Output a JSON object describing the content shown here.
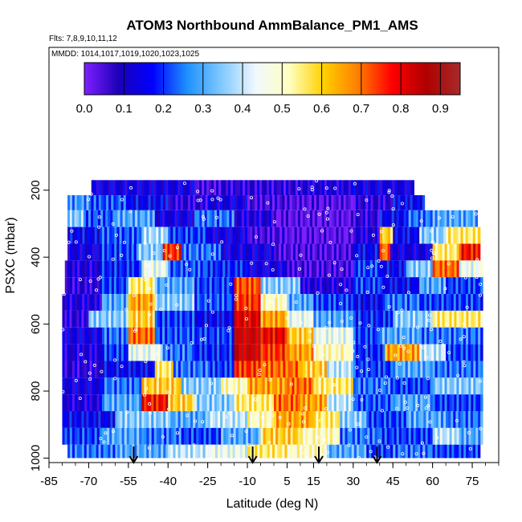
{
  "chart_data": {
    "type": "heatmap",
    "title": "ATOM3 Northbound AmmBalance_PM1_AMS",
    "subtitle": "Flts: 7,8,9,10,11,12",
    "annotation": "MMDD: 1014,1017,1019,1020,1023,1025",
    "xlabel": "Latitude (deg N)",
    "ylabel": "PSXC (mbar)",
    "xlim": [
      -85,
      85
    ],
    "ylim": [
      1000,
      100
    ],
    "y_reversed": true,
    "xticks": [
      "-85",
      "-70",
      "-55",
      "-40",
      "-25",
      "-10",
      "5",
      "15",
      "30",
      "45",
      "60",
      "75"
    ],
    "xtick_values": [
      -85,
      -70,
      -55,
      -40,
      -25,
      -10,
      5,
      15,
      30,
      45,
      60,
      75
    ],
    "yticks": [
      "200",
      "400",
      "600",
      "800",
      "1000"
    ],
    "ytick_values": [
      200,
      400,
      600,
      800,
      1000
    ],
    "colorbar": {
      "range": [
        0,
        0.95
      ],
      "ticks": [
        "0.0",
        "0.1",
        "0.2",
        "0.3",
        "0.4",
        "0.5",
        "0.6",
        "0.7",
        "0.8",
        "0.9"
      ],
      "tick_values": [
        0,
        0.1,
        0.2,
        0.3,
        0.4,
        0.5,
        0.6,
        0.7,
        0.8,
        0.9
      ],
      "colors": [
        "#7f1fff",
        "#1c00b8",
        "#0000ff",
        "#1e90ff",
        "#7fc8ff",
        "#f0f8ff",
        "#ffffc0",
        "#ffd000",
        "#ff7f00",
        "#ff0000",
        "#b00000",
        "#a52a2a"
      ]
    },
    "layers": [
      {
        "p_top": 170,
        "p_bot": 215,
        "segments": [
          [
            -69,
            -30,
            0.12
          ],
          [
            -30,
            -20,
            0.05
          ],
          [
            -20,
            10,
            0.08
          ],
          [
            10,
            30,
            0.1
          ],
          [
            30,
            53,
            0.12
          ]
        ]
      },
      {
        "p_top": 215,
        "p_bot": 260,
        "segments": [
          [
            -78,
            -70,
            0.28
          ],
          [
            -70,
            -55,
            0.22
          ],
          [
            -55,
            -40,
            0.15
          ],
          [
            -40,
            -25,
            0.08
          ],
          [
            -25,
            -10,
            0.12
          ],
          [
            -10,
            5,
            0.05
          ],
          [
            5,
            30,
            0.03
          ],
          [
            30,
            45,
            0.08
          ],
          [
            45,
            57,
            0.15
          ]
        ]
      },
      {
        "p_top": 260,
        "p_bot": 310,
        "segments": [
          [
            -78,
            -72,
            0.35
          ],
          [
            -72,
            -60,
            0.22
          ],
          [
            -60,
            -45,
            0.3
          ],
          [
            -45,
            -30,
            0.12
          ],
          [
            -30,
            -15,
            0.25
          ],
          [
            -15,
            0,
            0.1
          ],
          [
            0,
            30,
            0.02
          ],
          [
            30,
            40,
            0.08
          ],
          [
            40,
            50,
            0.15
          ],
          [
            50,
            60,
            0.25
          ],
          [
            60,
            77,
            0.3
          ]
        ]
      },
      {
        "p_top": 310,
        "p_bot": 360,
        "segments": [
          [
            -78,
            -65,
            0.15
          ],
          [
            -65,
            -50,
            0.22
          ],
          [
            -50,
            -40,
            0.38
          ],
          [
            -40,
            -25,
            0.2
          ],
          [
            -25,
            -10,
            0.12
          ],
          [
            -10,
            5,
            0.05
          ],
          [
            5,
            30,
            0.02
          ],
          [
            30,
            40,
            0.1
          ],
          [
            40,
            45,
            0.6
          ],
          [
            45,
            55,
            0.15
          ],
          [
            55,
            65,
            0.35
          ],
          [
            65,
            78,
            0.55
          ]
        ]
      },
      {
        "p_top": 360,
        "p_bot": 410,
        "segments": [
          [
            -78,
            -65,
            0.12
          ],
          [
            -65,
            -52,
            0.2
          ],
          [
            -52,
            -42,
            0.35
          ],
          [
            -42,
            -35,
            0.75
          ],
          [
            -35,
            -20,
            0.25
          ],
          [
            -20,
            0,
            0.12
          ],
          [
            0,
            30,
            0.04
          ],
          [
            30,
            40,
            0.15
          ],
          [
            40,
            44,
            0.7
          ],
          [
            44,
            60,
            0.12
          ],
          [
            60,
            70,
            0.55
          ],
          [
            70,
            78,
            0.78
          ]
        ]
      },
      {
        "p_top": 410,
        "p_bot": 460,
        "segments": [
          [
            -79,
            -65,
            0.1
          ],
          [
            -65,
            -50,
            0.18
          ],
          [
            -50,
            -40,
            0.45
          ],
          [
            -40,
            -25,
            0.22
          ],
          [
            -25,
            -10,
            0.18
          ],
          [
            -10,
            5,
            0.12
          ],
          [
            5,
            30,
            0.05
          ],
          [
            30,
            40,
            0.2
          ],
          [
            40,
            50,
            0.15
          ],
          [
            50,
            60,
            0.35
          ],
          [
            60,
            70,
            0.7
          ],
          [
            70,
            79,
            0.45
          ]
        ]
      },
      {
        "p_top": 460,
        "p_bot": 510,
        "segments": [
          [
            -79,
            -65,
            0.08
          ],
          [
            -65,
            -55,
            0.2
          ],
          [
            -55,
            -45,
            0.55
          ],
          [
            -45,
            -30,
            0.3
          ],
          [
            -30,
            -15,
            0.2
          ],
          [
            -15,
            -5,
            0.72
          ],
          [
            -5,
            10,
            0.35
          ],
          [
            10,
            30,
            0.1
          ],
          [
            30,
            42,
            0.2
          ],
          [
            42,
            55,
            0.15
          ],
          [
            55,
            65,
            0.3
          ],
          [
            65,
            79,
            0.2
          ]
        ]
      },
      {
        "p_top": 510,
        "p_bot": 560,
        "segments": [
          [
            -80,
            -65,
            0.1
          ],
          [
            -65,
            -55,
            0.3
          ],
          [
            -55,
            -45,
            0.65
          ],
          [
            -45,
            -30,
            0.35
          ],
          [
            -30,
            -15,
            0.22
          ],
          [
            -15,
            -5,
            0.75
          ],
          [
            -5,
            5,
            0.5
          ],
          [
            5,
            15,
            0.3
          ],
          [
            15,
            30,
            0.2
          ],
          [
            30,
            42,
            0.15
          ],
          [
            42,
            55,
            0.25
          ],
          [
            55,
            79,
            0.2
          ]
        ]
      },
      {
        "p_top": 560,
        "p_bot": 610,
        "segments": [
          [
            -80,
            -70,
            0.08
          ],
          [
            -70,
            -55,
            0.35
          ],
          [
            -55,
            -45,
            0.6
          ],
          [
            -45,
            -30,
            0.2
          ],
          [
            -30,
            -15,
            0.15
          ],
          [
            -15,
            -5,
            0.82
          ],
          [
            -5,
            5,
            0.65
          ],
          [
            5,
            15,
            0.45
          ],
          [
            15,
            30,
            0.3
          ],
          [
            30,
            45,
            0.18
          ],
          [
            45,
            60,
            0.35
          ],
          [
            60,
            79,
            0.55
          ]
        ]
      },
      {
        "p_top": 610,
        "p_bot": 660,
        "segments": [
          [
            -80,
            -65,
            0.12
          ],
          [
            -65,
            -55,
            0.25
          ],
          [
            -55,
            -45,
            0.7
          ],
          [
            -45,
            -30,
            0.22
          ],
          [
            -30,
            -15,
            0.2
          ],
          [
            -15,
            -5,
            0.85
          ],
          [
            -5,
            5,
            0.8
          ],
          [
            5,
            15,
            0.6
          ],
          [
            15,
            30,
            0.45
          ],
          [
            30,
            40,
            0.2
          ],
          [
            40,
            55,
            0.3
          ],
          [
            55,
            79,
            0.25
          ]
        ]
      },
      {
        "p_top": 660,
        "p_bot": 710,
        "segments": [
          [
            -80,
            -65,
            0.1
          ],
          [
            -65,
            -55,
            0.2
          ],
          [
            -55,
            -42,
            0.45
          ],
          [
            -42,
            -30,
            0.25
          ],
          [
            -30,
            -15,
            0.18
          ],
          [
            -15,
            -5,
            0.85
          ],
          [
            -5,
            5,
            0.75
          ],
          [
            5,
            15,
            0.65
          ],
          [
            15,
            30,
            0.5
          ],
          [
            30,
            42,
            0.18
          ],
          [
            42,
            55,
            0.65
          ],
          [
            55,
            65,
            0.4
          ],
          [
            65,
            79,
            0.2
          ]
        ]
      },
      {
        "p_top": 710,
        "p_bot": 760,
        "segments": [
          [
            -80,
            -65,
            0.08
          ],
          [
            -65,
            -45,
            0.15
          ],
          [
            -45,
            -38,
            0.55
          ],
          [
            -38,
            -25,
            0.25
          ],
          [
            -25,
            -15,
            0.2
          ],
          [
            -15,
            -5,
            0.75
          ],
          [
            -5,
            10,
            0.7
          ],
          [
            10,
            20,
            0.6
          ],
          [
            20,
            30,
            0.4
          ],
          [
            30,
            45,
            0.2
          ],
          [
            45,
            60,
            0.3
          ],
          [
            60,
            79,
            0.25
          ]
        ]
      },
      {
        "p_top": 760,
        "p_bot": 810,
        "segments": [
          [
            -80,
            -65,
            0.12
          ],
          [
            -65,
            -50,
            0.25
          ],
          [
            -50,
            -35,
            0.6
          ],
          [
            -35,
            -20,
            0.35
          ],
          [
            -20,
            -10,
            0.5
          ],
          [
            -10,
            5,
            0.65
          ],
          [
            5,
            15,
            0.7
          ],
          [
            15,
            30,
            0.55
          ],
          [
            30,
            45,
            0.25
          ],
          [
            45,
            60,
            0.2
          ],
          [
            60,
            79,
            0.35
          ]
        ]
      },
      {
        "p_top": 810,
        "p_bot": 860,
        "segments": [
          [
            -80,
            -65,
            0.1
          ],
          [
            -65,
            -50,
            0.3
          ],
          [
            -50,
            -40,
            0.78
          ],
          [
            -40,
            -30,
            0.6
          ],
          [
            -30,
            -15,
            0.35
          ],
          [
            -15,
            0,
            0.55
          ],
          [
            0,
            10,
            0.7
          ],
          [
            10,
            20,
            0.65
          ],
          [
            20,
            30,
            0.4
          ],
          [
            30,
            45,
            0.22
          ],
          [
            45,
            60,
            0.3
          ],
          [
            60,
            79,
            0.2
          ]
        ]
      },
      {
        "p_top": 860,
        "p_bot": 910,
        "segments": [
          [
            -80,
            -60,
            0.15
          ],
          [
            -60,
            -40,
            0.35
          ],
          [
            -40,
            -25,
            0.3
          ],
          [
            -25,
            -10,
            0.4
          ],
          [
            -10,
            0,
            0.5
          ],
          [
            0,
            15,
            0.65
          ],
          [
            15,
            25,
            0.55
          ],
          [
            25,
            35,
            0.35
          ],
          [
            35,
            50,
            0.2
          ],
          [
            50,
            65,
            0.3
          ],
          [
            65,
            79,
            0.25
          ]
        ]
      },
      {
        "p_top": 910,
        "p_bot": 960,
        "segments": [
          [
            -80,
            -65,
            0.2
          ],
          [
            -65,
            -50,
            0.3
          ],
          [
            -50,
            -35,
            0.25
          ],
          [
            -35,
            -20,
            0.2
          ],
          [
            -20,
            -5,
            0.3
          ],
          [
            -5,
            10,
            0.6
          ],
          [
            10,
            25,
            0.5
          ],
          [
            25,
            40,
            0.25
          ],
          [
            40,
            60,
            0.2
          ],
          [
            60,
            70,
            0.4
          ],
          [
            70,
            79,
            0.3
          ]
        ]
      },
      {
        "p_top": 960,
        "p_bot": 1000,
        "segments": [
          [
            -78,
            -60,
            0.25
          ],
          [
            -60,
            -40,
            0.3
          ],
          [
            -40,
            -25,
            0.4
          ],
          [
            -25,
            -10,
            0.45
          ],
          [
            -10,
            5,
            0.55
          ],
          [
            5,
            20,
            0.5
          ],
          [
            20,
            35,
            0.3
          ],
          [
            35,
            45,
            0.2
          ],
          [
            45,
            60,
            0.25
          ],
          [
            60,
            78,
            0.2
          ]
        ]
      }
    ],
    "markers": {
      "description": "downward arrows at bottom axis",
      "latitudes": [
        -53,
        -8,
        17,
        39
      ]
    }
  }
}
